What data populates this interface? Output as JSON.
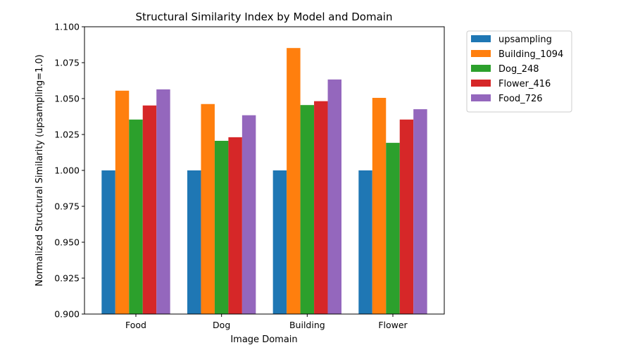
{
  "chart_data": {
    "type": "bar",
    "title": "Structural Similarity Index by Model and Domain",
    "xlabel": "Image Domain",
    "ylabel": "Normalized Structural Similarity (upsampling=1.0)",
    "categories": [
      "Food",
      "Dog",
      "Building",
      "Flower"
    ],
    "ylim": [
      0.9,
      1.1
    ],
    "yticks": [
      "0.900",
      "0.925",
      "0.950",
      "0.975",
      "1.000",
      "1.025",
      "1.050",
      "1.075",
      "1.100"
    ],
    "grid": false,
    "legend_position": "outside-top-right",
    "series": [
      {
        "name": "upsampling",
        "color": "#1f77b4",
        "values": [
          1.0,
          1.0,
          1.0,
          1.0
        ]
      },
      {
        "name": "Building_1094",
        "color": "#ff7f0e",
        "values": [
          1.0555,
          1.0462,
          1.0852,
          1.0505
        ]
      },
      {
        "name": "Dog_248",
        "color": "#2ca02c",
        "values": [
          1.0354,
          1.0206,
          1.0455,
          1.0192
        ]
      },
      {
        "name": "Flower_416",
        "color": "#d62728",
        "values": [
          1.0452,
          1.0231,
          1.0482,
          1.0354
        ]
      },
      {
        "name": "Food_726",
        "color": "#9467bd",
        "values": [
          1.0564,
          1.0384,
          1.0633,
          1.0426
        ]
      }
    ]
  }
}
